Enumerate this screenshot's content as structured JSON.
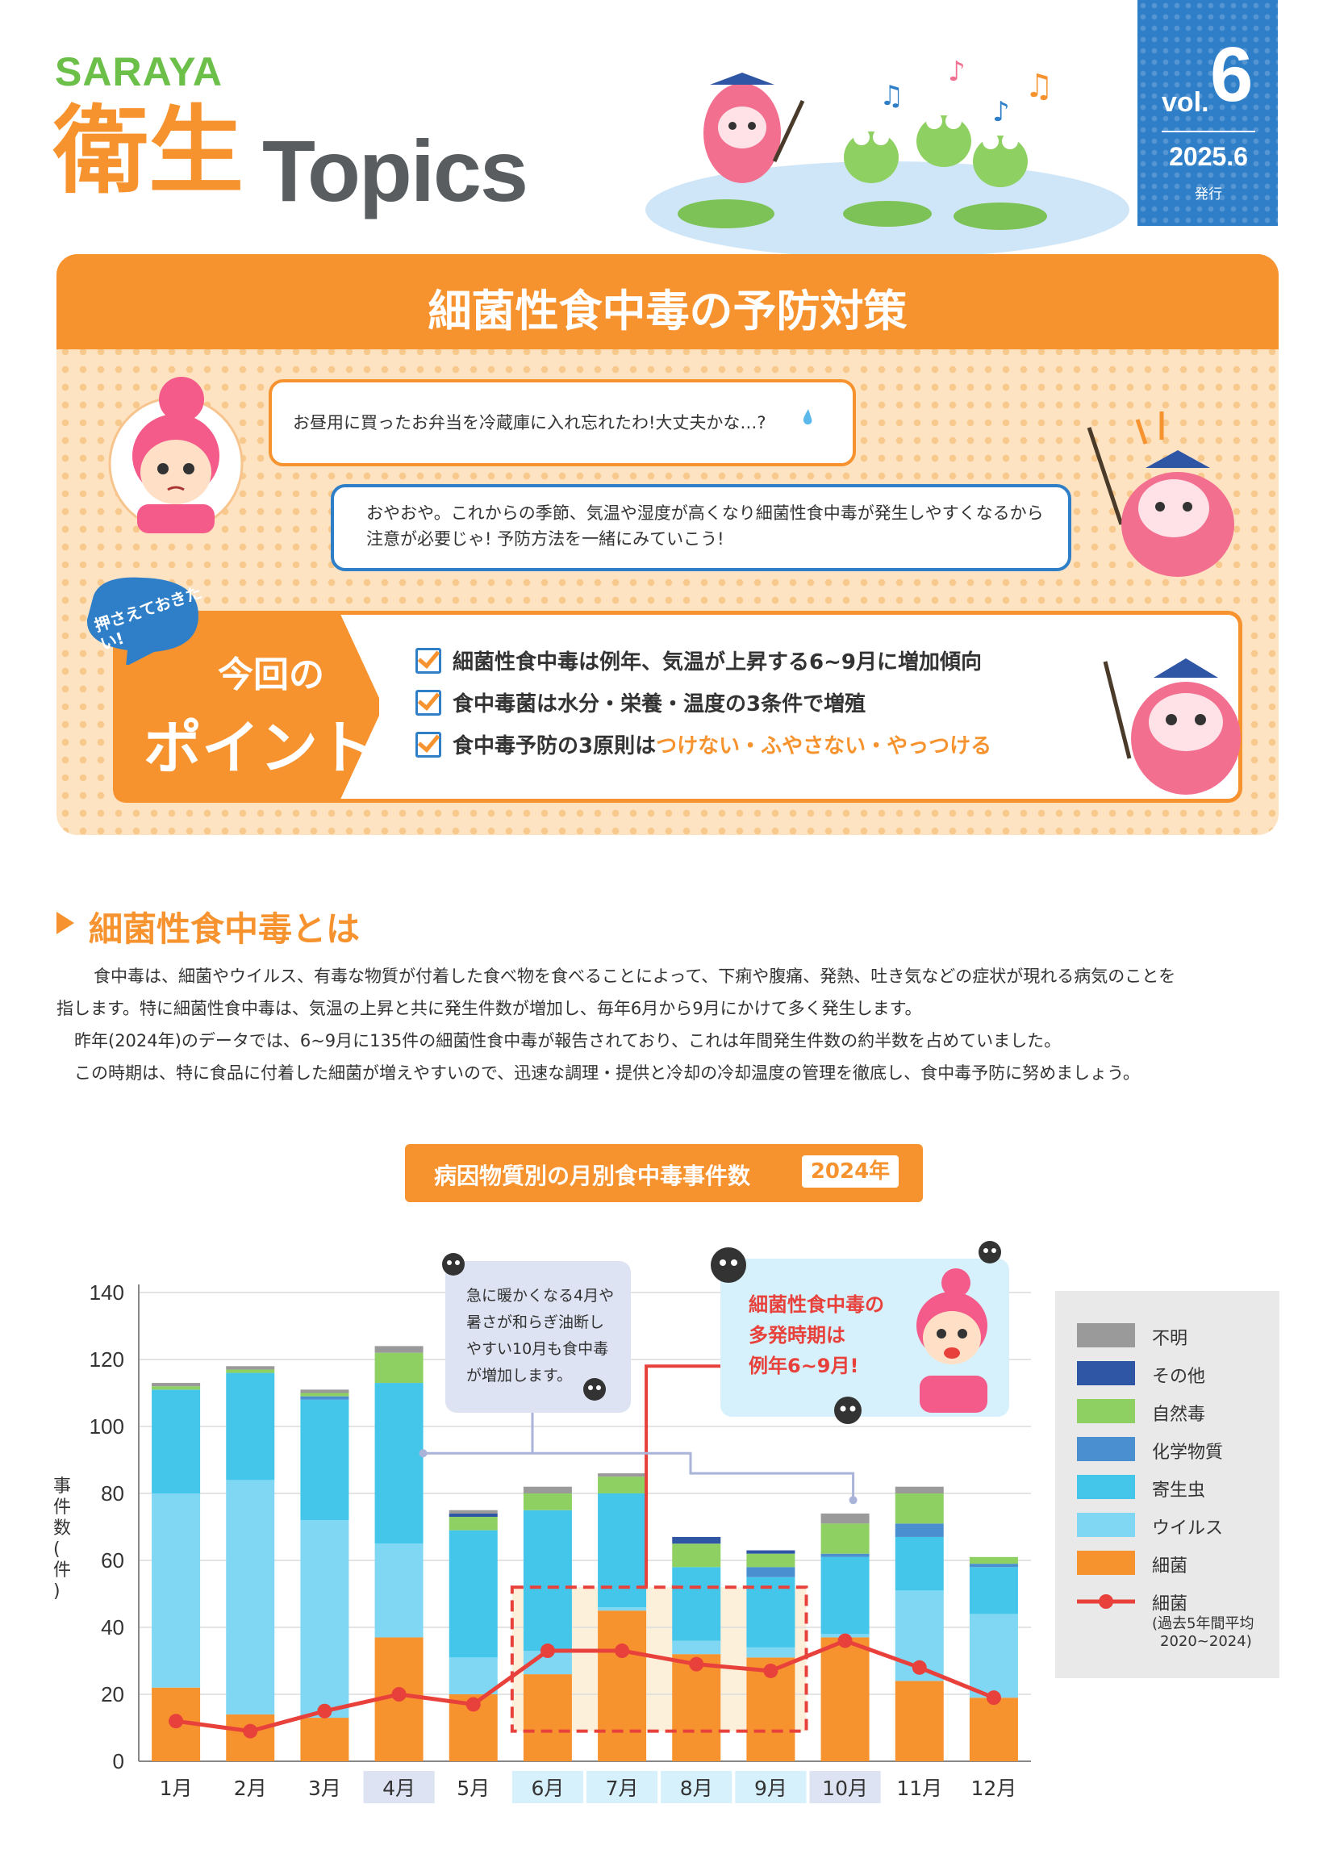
{
  "header": {
    "brand": "SARAYA",
    "title_kanji": "衛生",
    "title_latin": "Topics",
    "vol_label": "vol.",
    "vol_number": "6",
    "date": "2025.6",
    "issued": "発行"
  },
  "main": {
    "title": "細菌性食中毒の予防対策",
    "bubble_girl": "お昼用に買ったお弁当を冷蔵庫に入れ忘れたわ!大丈夫かな…?",
    "bubble_bird_line1": "おやおや。これからの季節、気温や湿度が高くなり細菌性食中毒が発生しやすくなるから",
    "bubble_bird_line2": "注意が必要じゃ! 予防方法を一緒にみていこう!",
    "badge": "押さえておきたい!",
    "point_title_1": "今回の",
    "point_title_2": "ポイント",
    "points": [
      {
        "text": "細菌性食中毒は例年、気温が上昇する6~9月に増加傾向"
      },
      {
        "text": "食中毒菌は水分・栄養・温度の3条件で増殖"
      },
      {
        "text": "食中毒予防の3原則は",
        "highlight": "つけない・ふやさない・やっつける"
      }
    ]
  },
  "section": {
    "title": "細菌性食中毒とは",
    "para1_line1": "食中毒は、細菌やウイルス、有毒な物質が付着した食べ物を食べることによって、下痢や腹痛、発熱、吐き気などの症状が現れる病気のことを",
    "para1_line2": "指します。特に細菌性食中毒は、気温の上昇と共に発生件数が増加し、毎年6月から9月にかけて多く発生します。",
    "para2": "昨年(2024年)のデータでは、6~9月に135件の細菌性食中毒が報告されており、これは年間発生件数の約半数を占めていました。",
    "para3": "この時期は、特に食品に付着した細菌が増えやすいので、迅速な調理・提供と冷却の冷却温度の管理を徹底し、食中毒予防に努めましょう。"
  },
  "chart_data": {
    "type": "bar",
    "stacked": true,
    "title": "病因物質別の月別食中毒事件数",
    "title_year": "2024年",
    "ylabel": "事件数(件)",
    "ylim": [
      0,
      140
    ],
    "yticks": [
      0,
      20,
      40,
      60,
      80,
      100,
      120,
      140
    ],
    "categories": [
      "1月",
      "2月",
      "3月",
      "4月",
      "5月",
      "6月",
      "7月",
      "8月",
      "9月",
      "10月",
      "11月",
      "12月"
    ],
    "series": [
      {
        "name": "細菌",
        "color": "#f7932f",
        "values": [
          22,
          14,
          13,
          37,
          20,
          26,
          45,
          32,
          31,
          37,
          24,
          19
        ]
      },
      {
        "name": "ウイルス",
        "color": "#7fd7f3",
        "values": [
          58,
          70,
          59,
          28,
          11,
          7,
          1,
          4,
          3,
          1,
          27,
          25
        ]
      },
      {
        "name": "寄生虫",
        "color": "#44c6ea",
        "values": [
          31,
          32,
          36,
          48,
          38,
          42,
          34,
          22,
          21,
          23,
          16,
          14
        ]
      },
      {
        "name": "化学物質",
        "color": "#4a90d0",
        "values": [
          0,
          0,
          1,
          0,
          0,
          0,
          0,
          0,
          3,
          1,
          4,
          1
        ]
      },
      {
        "name": "自然毒",
        "color": "#8fd062",
        "values": [
          1,
          1,
          1,
          9,
          4,
          5,
          5,
          7,
          4,
          9,
          9,
          2
        ]
      },
      {
        "name": "その他",
        "color": "#2f55a5",
        "values": [
          0,
          0,
          0,
          0,
          1,
          0,
          0,
          2,
          1,
          0,
          0,
          0
        ]
      },
      {
        "name": "不明",
        "color": "#9a9a9a",
        "values": [
          1,
          1,
          1,
          2,
          1,
          2,
          1,
          0,
          0,
          3,
          2,
          0
        ]
      }
    ],
    "line": {
      "name": "細菌",
      "note_line1": "(過去5年間平均",
      "note_line2": "2020~2024)",
      "color": "#e8413c",
      "values": [
        12,
        9,
        15,
        20,
        17,
        33,
        33,
        29,
        27,
        36,
        28,
        19
      ]
    },
    "callout_left": [
      "急に暖かくなる4月や",
      "暑さが和らぎ油断し",
      "やすい10月も食中毒",
      "が増加します。"
    ],
    "callout_right": [
      "細菌性食中毒の",
      "多発時期は",
      "例年6~9月!"
    ]
  }
}
